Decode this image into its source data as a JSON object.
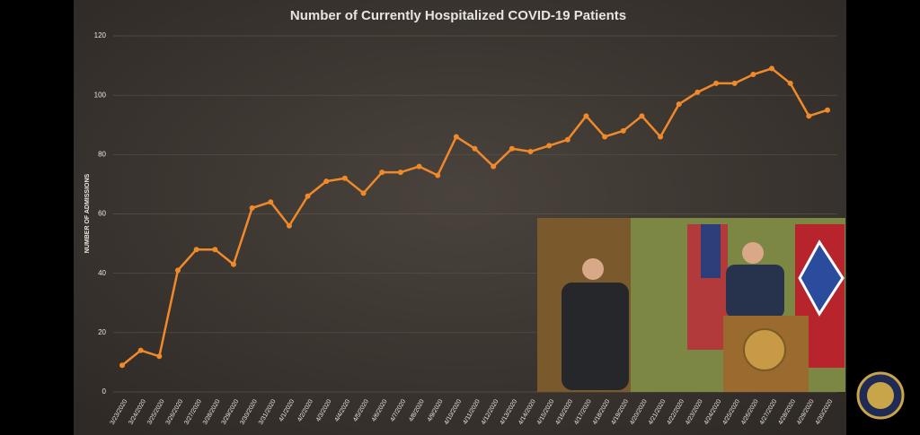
{
  "chart_data": {
    "type": "line",
    "title": "Number of Currently Hospitalized COVID-19 Patients",
    "y_label": "NUMBER OF ADMISSIONS",
    "categories": [
      "3/23/2020",
      "3/24/2020",
      "3/25/2020",
      "3/26/2020",
      "3/27/2020",
      "3/28/2020",
      "3/29/2020",
      "3/30/2020",
      "3/31/2020",
      "4/1/2020",
      "4/2/2020",
      "4/3/2020",
      "4/4/2020",
      "4/5/2020",
      "4/6/2020",
      "4/7/2020",
      "4/8/2020",
      "4/9/2020",
      "4/10/2020",
      "4/11/2020",
      "4/12/2020",
      "4/13/2020",
      "4/14/2020",
      "4/15/2020",
      "4/16/2020",
      "4/17/2020",
      "4/18/2020",
      "4/19/2020",
      "4/20/2020",
      "4/21/2020",
      "4/22/2020",
      "4/23/2020",
      "4/24/2020",
      "4/25/2020",
      "4/26/2020",
      "4/27/2020",
      "4/28/2020",
      "4/29/2020",
      "4/30/2020"
    ],
    "values": [
      9,
      14,
      12,
      41,
      48,
      48,
      43,
      62,
      64,
      56,
      66,
      71,
      72,
      67,
      74,
      74,
      76,
      73,
      86,
      82,
      76,
      82,
      81,
      83,
      85,
      93,
      86,
      88,
      93,
      86,
      97,
      101,
      104,
      104,
      107,
      109,
      104,
      93,
      95
    ],
    "color": "#f0892a",
    "ylim": [
      0,
      120
    ],
    "yticks": [
      0,
      20,
      40,
      60,
      80,
      100,
      120
    ],
    "grid": true
  }
}
